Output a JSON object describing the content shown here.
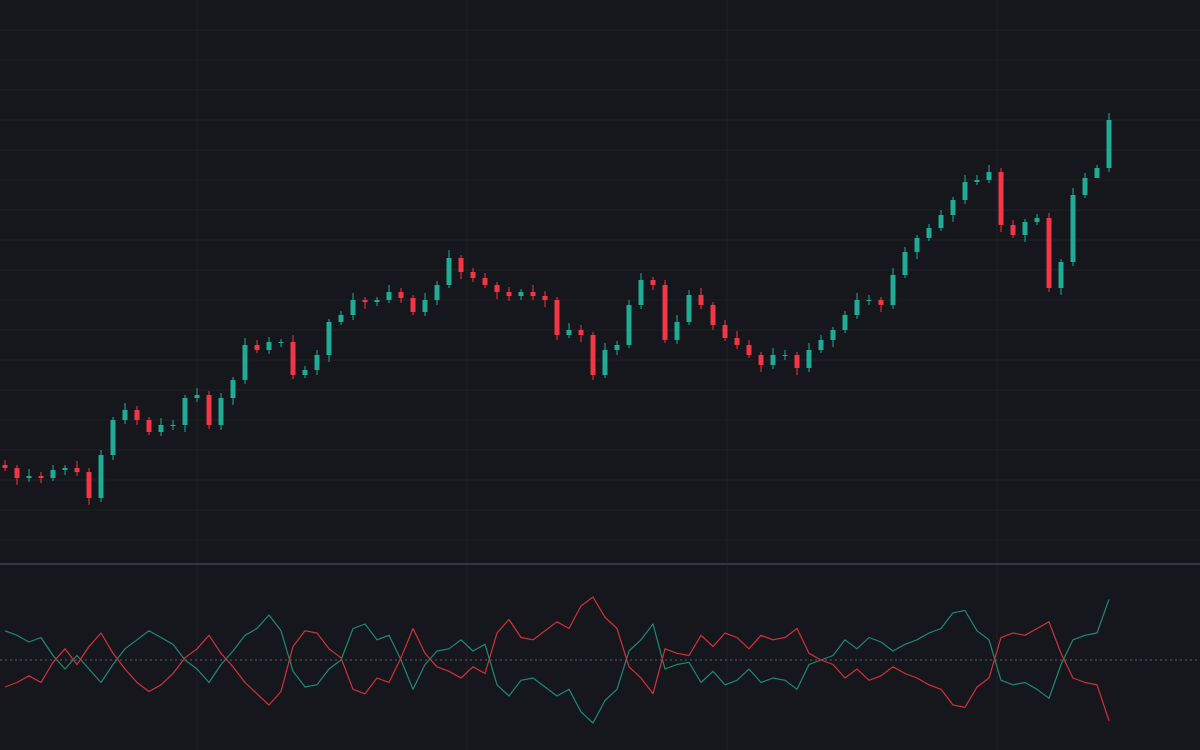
{
  "chart_data": [
    {
      "type": "candlestick",
      "categories": [
        null,
        null,
        null,
        null,
        null,
        null,
        null,
        null,
        null,
        null,
        null,
        null,
        null,
        null,
        null,
        null,
        null,
        null,
        null,
        null,
        null,
        null,
        null,
        null,
        null,
        null,
        null,
        null,
        null,
        null,
        null,
        null,
        null,
        null,
        null,
        null,
        null,
        null,
        null,
        null,
        null,
        null,
        null,
        null,
        null,
        null,
        null,
        null,
        null,
        null,
        null,
        null,
        null,
        null,
        null,
        null,
        null,
        null,
        null,
        null,
        null,
        null,
        null,
        null,
        null,
        null,
        null,
        null,
        null,
        null,
        null,
        null,
        null,
        null,
        null,
        null,
        null,
        null,
        null,
        null,
        null,
        null,
        null,
        null,
        null,
        null,
        null,
        null,
        null,
        null,
        null,
        null,
        null
      ],
      "open": [
        95,
        92,
        82,
        84,
        82,
        90,
        92,
        88,
        62,
        105,
        140,
        150,
        140,
        128,
        135,
        135,
        162,
        165,
        135,
        162,
        180,
        215,
        210,
        218,
        218,
        185,
        190,
        205,
        238,
        245,
        260,
        258,
        260,
        268,
        262,
        248,
        260,
        275,
        302,
        288,
        282,
        275,
        268,
        264,
        268,
        264,
        260,
        225,
        230,
        225,
        185,
        210,
        215,
        255,
        280,
        275,
        220,
        238,
        265,
        255,
        235,
        222,
        215,
        205,
        195,
        205,
        205,
        192,
        210,
        220,
        230,
        245,
        260,
        260,
        255,
        285,
        308,
        322,
        332,
        345,
        360,
        378,
        380,
        388,
        335,
        325,
        338,
        342,
        272,
        298,
        365,
        382,
        392
      ],
      "high": [
        100,
        95,
        91,
        88,
        95,
        95,
        99,
        92,
        110,
        143,
        157,
        154,
        143,
        142,
        140,
        165,
        172,
        169,
        167,
        183,
        222,
        220,
        223,
        221,
        225,
        194,
        210,
        241,
        249,
        267,
        263,
        263,
        275,
        272,
        265,
        267,
        279,
        310,
        305,
        292,
        287,
        278,
        273,
        271,
        275,
        269,
        263,
        237,
        235,
        228,
        217,
        219,
        260,
        287,
        283,
        280,
        245,
        270,
        272,
        258,
        240,
        229,
        220,
        208,
        212,
        210,
        208,
        217,
        225,
        233,
        249,
        267,
        265,
        263,
        292,
        313,
        325,
        336,
        350,
        363,
        385,
        385,
        395,
        392,
        340,
        341,
        346,
        347,
        301,
        372,
        387,
        395,
        447
      ],
      "low": [
        89,
        75,
        78,
        77,
        79,
        85,
        84,
        55,
        58,
        100,
        136,
        135,
        125,
        124,
        130,
        128,
        158,
        131,
        130,
        155,
        176,
        207,
        206,
        213,
        181,
        182,
        185,
        198,
        235,
        240,
        251,
        254,
        257,
        257,
        245,
        244,
        255,
        272,
        281,
        278,
        272,
        261,
        259,
        260,
        260,
        253,
        220,
        222,
        218,
        180,
        182,
        205,
        212,
        251,
        270,
        217,
        216,
        235,
        251,
        230,
        219,
        211,
        202,
        188,
        191,
        200,
        185,
        188,
        207,
        213,
        227,
        241,
        255,
        248,
        251,
        282,
        301,
        319,
        329,
        338,
        356,
        375,
        377,
        328,
        322,
        318,
        335,
        268,
        265,
        294,
        362,
        385,
        388
      ],
      "close": [
        92,
        82,
        84,
        82,
        90,
        92,
        88,
        62,
        105,
        140,
        150,
        140,
        128,
        135,
        135,
        162,
        165,
        135,
        162,
        180,
        215,
        210,
        218,
        218,
        185,
        190,
        205,
        238,
        245,
        260,
        258,
        260,
        268,
        262,
        248,
        260,
        275,
        302,
        288,
        282,
        275,
        268,
        264,
        268,
        264,
        260,
        225,
        230,
        225,
        185,
        210,
        215,
        255,
        280,
        275,
        220,
        238,
        265,
        255,
        235,
        222,
        215,
        205,
        195,
        205,
        205,
        192,
        210,
        220,
        230,
        245,
        260,
        260,
        255,
        285,
        308,
        322,
        332,
        345,
        360,
        378,
        380,
        388,
        335,
        325,
        338,
        342,
        272,
        298,
        365,
        382,
        392,
        440
      ],
      "up_color": "#22ab94",
      "down_color": "#f23645",
      "ylim": [
        0,
        560
      ],
      "yticks": [
        20,
        50,
        80,
        110,
        140,
        170,
        200,
        230,
        260,
        290,
        320,
        350,
        380,
        410,
        440,
        470,
        500,
        530
      ],
      "grid": true
    },
    {
      "type": "line",
      "categories": [
        null,
        null,
        null,
        null,
        null,
        null,
        null,
        null,
        null,
        null,
        null,
        null,
        null,
        null,
        null,
        null,
        null,
        null,
        null,
        null,
        null,
        null,
        null,
        null,
        null,
        null,
        null,
        null,
        null,
        null,
        null,
        null,
        null,
        null,
        null,
        null,
        null,
        null,
        null,
        null,
        null,
        null,
        null,
        null,
        null,
        null,
        null,
        null,
        null,
        null,
        null,
        null,
        null,
        null,
        null,
        null,
        null,
        null,
        null,
        null,
        null,
        null,
        null,
        null,
        null,
        null,
        null,
        null,
        null,
        null,
        null,
        null,
        null,
        null,
        null,
        null,
        null,
        null,
        null,
        null,
        null,
        null,
        null,
        null,
        null,
        null,
        null,
        null,
        null,
        null,
        null,
        null,
        null
      ],
      "series": [
        {
          "color": "#1f8a70",
          "values": [
            1.13,
            1.11,
            1.08,
            1.1,
            1.02,
            0.96,
            1.02,
            0.96,
            0.9,
            0.98,
            1.05,
            1.09,
            1.13,
            1.1,
            1.07,
            1.0,
            0.96,
            0.9,
            0.98,
            1.04,
            1.11,
            1.14,
            1.2,
            1.13,
            0.95,
            0.88,
            0.89,
            0.96,
            1.0,
            1.14,
            1.16,
            1.09,
            1.11,
            1.0,
            0.87,
            0.98,
            1.04,
            1.05,
            1.09,
            1.04,
            1.07,
            0.89,
            0.84,
            0.91,
            0.92,
            0.88,
            0.84,
            0.87,
            0.77,
            0.72,
            0.82,
            0.87,
            1.04,
            1.09,
            1.16,
            0.96,
            0.98,
            0.99,
            0.9,
            0.95,
            0.89,
            0.91,
            0.96,
            0.9,
            0.92,
            0.91,
            0.87,
            0.98,
            1.0,
            1.02,
            1.09,
            1.05,
            1.1,
            1.08,
            1.04,
            1.07,
            1.09,
            1.12,
            1.14,
            1.21,
            1.22,
            1.13,
            1.09,
            0.91,
            0.89,
            0.9,
            0.87,
            0.83,
            0.98,
            1.09,
            1.11,
            1.12,
            1.27
          ]
        },
        {
          "color": "#d1313f",
          "values": [
            0.88,
            0.9,
            0.93,
            0.9,
            0.99,
            1.05,
            0.98,
            1.06,
            1.12,
            1.03,
            0.96,
            0.9,
            0.86,
            0.89,
            0.94,
            1.01,
            1.05,
            1.11,
            1.03,
            0.97,
            0.9,
            0.85,
            0.8,
            0.86,
            1.06,
            1.13,
            1.12,
            1.05,
            1.01,
            0.87,
            0.85,
            0.92,
            0.9,
            1.01,
            1.14,
            1.03,
            0.97,
            0.95,
            0.92,
            0.97,
            0.94,
            1.12,
            1.18,
            1.1,
            1.09,
            1.13,
            1.17,
            1.14,
            1.24,
            1.28,
            1.19,
            1.14,
            0.97,
            0.92,
            0.85,
            1.05,
            1.03,
            1.02,
            1.11,
            1.06,
            1.12,
            1.1,
            1.05,
            1.11,
            1.09,
            1.1,
            1.14,
            1.03,
            1.0,
            0.98,
            0.92,
            0.96,
            0.91,
            0.93,
            0.97,
            0.94,
            0.92,
            0.89,
            0.87,
            0.8,
            0.79,
            0.88,
            0.92,
            1.1,
            1.12,
            1.11,
            1.14,
            1.17,
            1.03,
            0.92,
            0.9,
            0.89,
            0.73
          ]
        }
      ],
      "ylim": [
        0.6,
        1.4
      ],
      "yticks": [
        1
      ],
      "grid": "dashed"
    }
  ]
}
